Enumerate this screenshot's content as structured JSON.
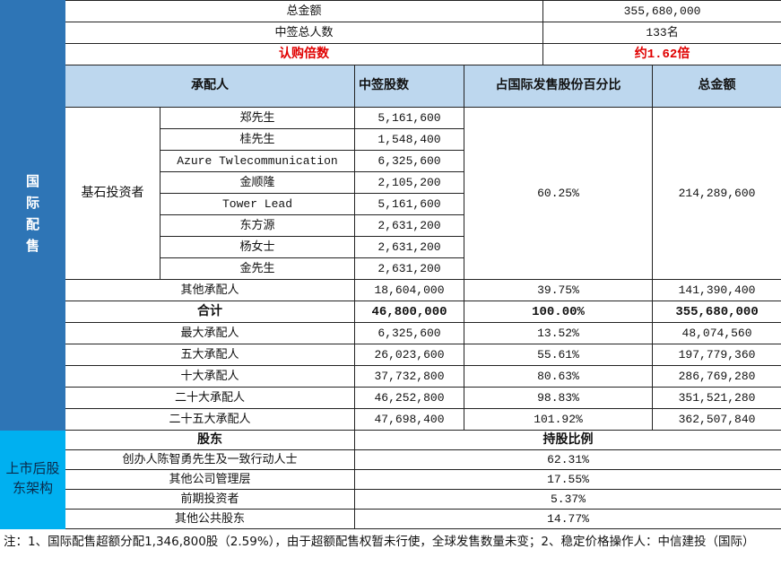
{
  "summary": {
    "total_amount_label": "总金额",
    "total_amount": "355,680,000",
    "winners_label": "中签总人数",
    "winners": "133名",
    "subscription_label": "认购倍数",
    "subscription": "约1.62倍"
  },
  "section_labels": {
    "intl": "国际配售",
    "post": "上市后股东架构"
  },
  "headers": {
    "underwriter": "承配人",
    "shares": "中签股数",
    "percent": "占国际发售股份百分比",
    "amount": "总金额"
  },
  "cornerstone": {
    "label": "基石投资者",
    "percent": "60.25%",
    "amount": "214,289,600",
    "investors": [
      {
        "name": "郑先生",
        "shares": "5,161,600"
      },
      {
        "name": "桂先生",
        "shares": "1,548,400"
      },
      {
        "name": "Azure Twlecommunication",
        "shares": "6,325,600"
      },
      {
        "name": "金顺隆",
        "shares": "2,105,200"
      },
      {
        "name": "Tower Lead",
        "shares": "5,161,600"
      },
      {
        "name": "东方源",
        "shares": "2,631,200"
      },
      {
        "name": "杨女士",
        "shares": "2,631,200"
      },
      {
        "name": "金先生",
        "shares": "2,631,200"
      }
    ]
  },
  "rows": [
    {
      "label": "其他承配人",
      "shares": "18,604,000",
      "percent": "39.75%",
      "amount": "141,390,400"
    },
    {
      "label": "合计",
      "shares": "46,800,000",
      "percent": "100.00%",
      "amount": "355,680,000"
    },
    {
      "label": "最大承配人",
      "shares": "6,325,600",
      "percent": "13.52%",
      "amount": "48,074,560"
    },
    {
      "label": "五大承配人",
      "shares": "26,023,600",
      "percent": "55.61%",
      "amount": "197,779,360"
    },
    {
      "label": "十大承配人",
      "shares": "37,732,800",
      "percent": "80.63%",
      "amount": "286,769,280"
    },
    {
      "label": "二十大承配人",
      "shares": "46,252,800",
      "percent": "98.83%",
      "amount": "351,521,280"
    },
    {
      "label": "二十五大承配人",
      "shares": "47,698,400",
      "percent": "101.92%",
      "amount": "362,507,840"
    }
  ],
  "shareholders": {
    "header_holder": "股东",
    "header_ratio": "持股比例",
    "items": [
      {
        "name": "创办人陈智勇先生及一致行动人士",
        "ratio": "62.31%"
      },
      {
        "name": "其他公司管理层",
        "ratio": "17.55%"
      },
      {
        "name": "前期投资者",
        "ratio": "5.37%"
      },
      {
        "name": "其他公共股东",
        "ratio": "14.77%"
      }
    ]
  },
  "note": "注：1、国际配售超额分配1,346,800股（2.59%），由于超额配售权暂未行使，全球发售数量未变；2、稳定价格操作人：中信建投（国际）",
  "colors": {
    "section_intl": "#2e75b6",
    "section_post": "#00b0f0",
    "header_bg": "#bdd7ee",
    "highlight": "#e00000"
  }
}
